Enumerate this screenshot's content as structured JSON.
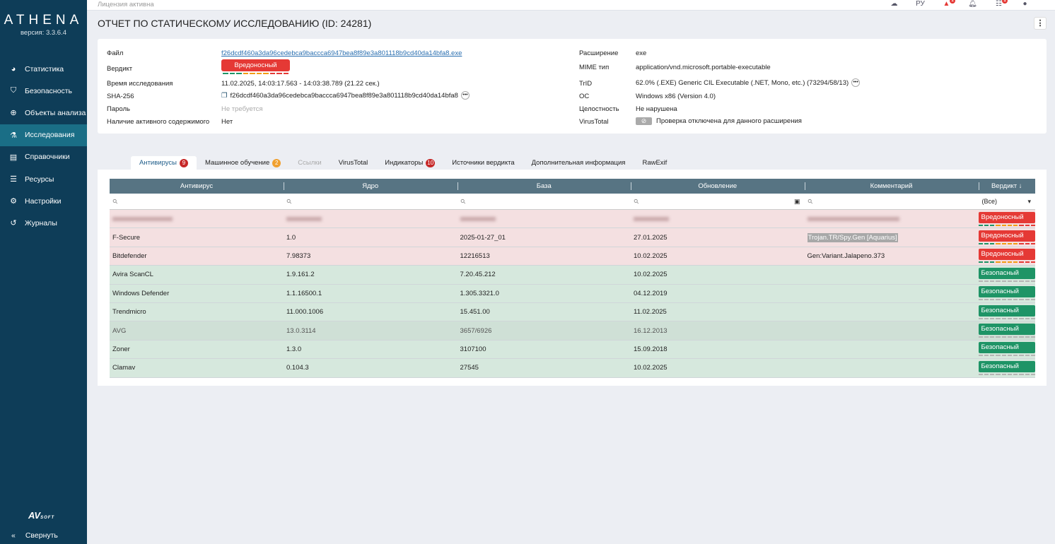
{
  "sidebar": {
    "logo": "ATHENA",
    "version": "версия: 3.3.6.4",
    "items": [
      {
        "label": "Статистика",
        "icon": "pie-chart-icon",
        "glyph": "◕"
      },
      {
        "label": "Безопасность",
        "icon": "shield-icon",
        "glyph": "⛉"
      },
      {
        "label": "Объекты анализа",
        "icon": "crosshair-icon",
        "glyph": "⊕"
      },
      {
        "label": "Исследования",
        "icon": "flask-icon",
        "glyph": "⚗",
        "active": true
      },
      {
        "label": "Справочники",
        "icon": "book-icon",
        "glyph": "▤"
      },
      {
        "label": "Ресурсы",
        "icon": "server-icon",
        "glyph": "☰"
      },
      {
        "label": "Настройки",
        "icon": "gear-icon",
        "glyph": "⚙"
      },
      {
        "label": "Журналы",
        "icon": "history-icon",
        "glyph": "↺"
      }
    ],
    "brand": "AV",
    "brand_sub": "SOFT",
    "collapse": "Свернуть"
  },
  "topbar": {
    "license": "Лицензия активна",
    "lang": "РУ",
    "alerts_badge": "1",
    "tasks_badge": "1"
  },
  "page": {
    "title": "ОТЧЕТ ПО СТАТИЧЕСКОМУ ИССЛЕДОВАНИЮ (ID: 24281)"
  },
  "info": {
    "file_label": "Файл",
    "file": "f26dcdf460a3da96cedebca9baccca6947bea8f89e3a801118b9cd40da14bfa8.exe",
    "verdict_label": "Вердикт",
    "verdict": "Вредоносный",
    "time_label": "Время исследования",
    "time": "11.02.2025, 14:03:17.563 - 14:03:38.789 (21.22 сек.)",
    "sha_label": "SHA-256",
    "sha": "f26dcdf460a3da96cedebca9baccca6947bea8f89e3a801118b9cd40da14bfa8",
    "password_label": "Пароль",
    "password": "Не требуется",
    "active_label": "Наличие активного содержимого",
    "active": "Нет",
    "ext_label": "Расширение",
    "ext": "exe",
    "mime_label": "MIME тип",
    "mime": "application/vnd.microsoft.portable-executable",
    "trid_label": "TrID",
    "trid": "62.0% (.EXE) Generic CIL Executable (.NET, Mono, etc.) (73294/58/13)",
    "os_label": "ОС",
    "os": "Windows x86 (Version 4.0)",
    "integrity_label": "Целостность",
    "integrity": "Не нарушена",
    "vt_label": "VirusTotal",
    "vt": "Проверка отключена для данного расширения"
  },
  "tabs": [
    {
      "label": "Антивирусы",
      "badge": "9",
      "badge_color": "#c62828",
      "active": true
    },
    {
      "label": "Машинное обучение",
      "badge": "2",
      "badge_color": "#f0a030"
    },
    {
      "label": "Ссылки",
      "disabled": true
    },
    {
      "label": "VirusTotal"
    },
    {
      "label": "Индикаторы",
      "badge": "10",
      "badge_color": "#c62828"
    },
    {
      "label": "Источники вердикта"
    },
    {
      "label": "Дополнительная информация"
    },
    {
      "label": "RawExif"
    }
  ],
  "colors": {
    "malicious": "#e53935",
    "safe": "#1e9466",
    "sidebar": "#0e3d58",
    "header": "#577483"
  },
  "table": {
    "columns": [
      "Антивирус",
      "Ядро",
      "База",
      "Обновление",
      "Комментарий",
      "Вердикт ↓"
    ],
    "verdict_filter": "(Все)",
    "rows": [
      {
        "av": "",
        "core": "",
        "base": "",
        "updated": "",
        "comment": "",
        "verdict": "Вредоносный",
        "status": "bad",
        "blurred": true
      },
      {
        "av": "F-Secure",
        "core": "1.0",
        "base": "2025-01-27_01",
        "updated": "27.01.2025",
        "comment": "Trojan.TR/Spy.Gen [Aquarius]",
        "verdict": "Вредоносный",
        "status": "bad",
        "highlight": true
      },
      {
        "av": "Bitdefender",
        "core": "7.98373",
        "base": "12216513",
        "updated": "10.02.2025",
        "comment": "Gen:Variant.Jalapeno.373",
        "verdict": "Вредоносный",
        "status": "bad"
      },
      {
        "av": "Avira ScanCL",
        "core": "1.9.161.2",
        "base": "7.20.45.212",
        "updated": "10.02.2025",
        "comment": "",
        "verdict": "Безопасный",
        "status": "good"
      },
      {
        "av": "Windows Defender",
        "core": "1.1.16500.1",
        "base": "1.305.3321.0",
        "updated": "04.12.2019",
        "comment": "",
        "verdict": "Безопасный",
        "status": "good"
      },
      {
        "av": "Trendmicro",
        "core": "11.000.1006",
        "base": "15.451.00",
        "updated": "11.02.2025",
        "comment": "",
        "verdict": "Безопасный",
        "status": "good"
      },
      {
        "av": "AVG",
        "core": "13.0.3114",
        "base": "3657/6926",
        "updated": "16.12.2013",
        "comment": "",
        "verdict": "Безопасный",
        "status": "dim"
      },
      {
        "av": "Zoner",
        "core": "1.3.0",
        "base": "3107100",
        "updated": "15.09.2018",
        "comment": "",
        "verdict": "Безопасный",
        "status": "good"
      },
      {
        "av": "Clamav",
        "core": "0.104.3",
        "base": "27545",
        "updated": "10.02.2025",
        "comment": "",
        "verdict": "Безопасный",
        "status": "good"
      }
    ]
  }
}
